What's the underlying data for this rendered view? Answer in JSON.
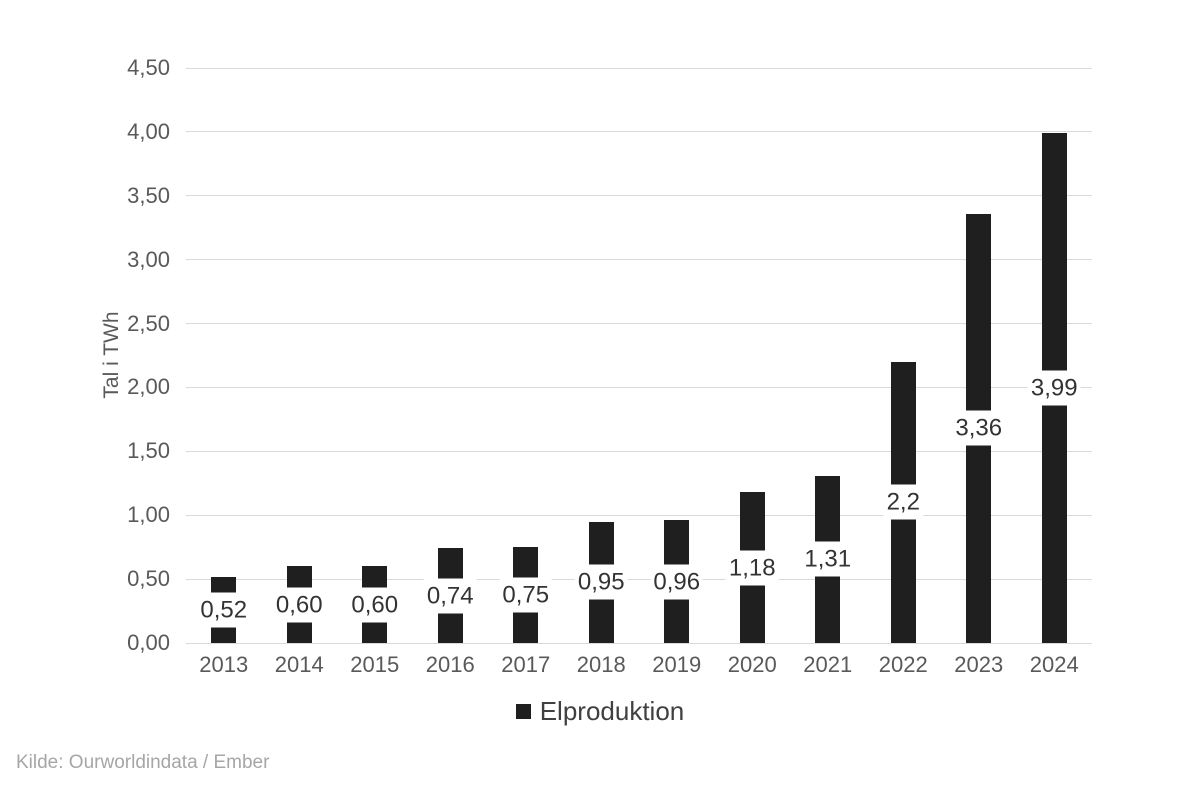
{
  "chart_data": {
    "type": "bar",
    "title": "",
    "categories": [
      "2013",
      "2014",
      "2015",
      "2016",
      "2017",
      "2018",
      "2019",
      "2020",
      "2021",
      "2022",
      "2023",
      "2024"
    ],
    "series": [
      {
        "name": "Elproduktion",
        "values": [
          0.52,
          0.6,
          0.6,
          0.74,
          0.75,
          0.95,
          0.96,
          1.18,
          1.31,
          2.2,
          3.36,
          3.99
        ],
        "labels": [
          "0,52",
          "0,60",
          "0,60",
          "0,74",
          "0,75",
          "0,95",
          "0,96",
          "1,18",
          "1,31",
          "2,2",
          "3,36",
          "3,99"
        ]
      }
    ],
    "xlabel": "",
    "ylabel": "Tal i TWh",
    "ylim": [
      0,
      4.5
    ],
    "ytick_step": 0.5,
    "yticks": [
      "0,00",
      "0,50",
      "1,00",
      "1,50",
      "2,00",
      "2,50",
      "3,00",
      "3,50",
      "4,00",
      "4,50"
    ],
    "grid": true,
    "legend_position": "bottom-center",
    "data_label_position": "center-inside-white-box"
  },
  "legend": {
    "label": "Elproduktion"
  },
  "source": {
    "text": "Kilde: Ourworldindata / Ember"
  },
  "colors": {
    "bar": "#1f1f1f",
    "gridline": "#d9d9d9",
    "tick_text": "#595959",
    "data_label_text": "#333333",
    "legend_text": "#404040",
    "source_text": "#a6a6a6",
    "background": "#ffffff"
  }
}
